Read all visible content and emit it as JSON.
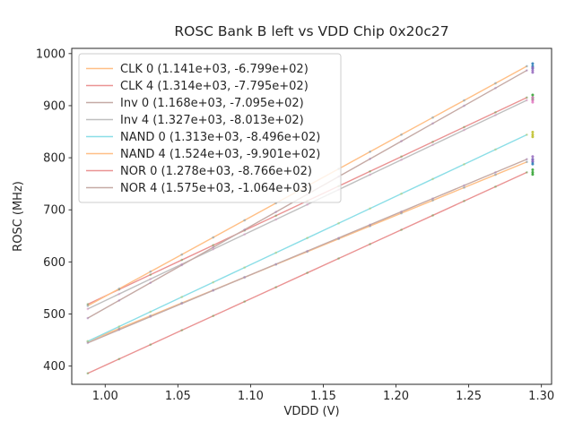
{
  "title": "ROSC Bank B left vs VDD Chip 0x20c27",
  "chart_data": {
    "type": "line",
    "title": "ROSC Bank B left vs VDD Chip 0x20c27",
    "xlabel": "VDDD (V)",
    "ylabel": "ROSC (MHz)",
    "xlim": [
      0.977,
      1.307
    ],
    "ylim": [
      365,
      1010
    ],
    "x_ticks": [
      1.0,
      1.05,
      1.1,
      1.15,
      1.2,
      1.25,
      1.3
    ],
    "x_tick_labels": [
      "1.00",
      "1.05",
      "1.10",
      "1.15",
      "1.20",
      "1.25",
      "1.30"
    ],
    "y_ticks": [
      400,
      500,
      600,
      700,
      800,
      900,
      1000
    ],
    "y_tick_labels": [
      "400",
      "500",
      "600",
      "700",
      "800",
      "900",
      "1000"
    ],
    "grid": false,
    "legend_position": "upper left",
    "x_start": 0.988,
    "x_end": 1.29,
    "n_points": 15,
    "fit_note": "each series is a linear fit y = slope*x + intercept, legend shows (slope, intercept)",
    "series": [
      {
        "name": "CLK 0",
        "label": "CLK 0 (1.141e+03, -6.799e+02)",
        "slope": 1141,
        "intercept": -679.9,
        "line_color": "#ffbf86",
        "point_color": "#1f77b4"
      },
      {
        "name": "CLK 4",
        "label": "CLK 4 (1.314e+03, -7.795e+02)",
        "slope": 1314,
        "intercept": -779.5,
        "line_color": "#ea9393",
        "point_color": "#2ca02c"
      },
      {
        "name": "Inv 0",
        "label": "Inv 0 (1.168e+03, -7.095e+02)",
        "slope": 1168,
        "intercept": -709.5,
        "line_color": "#c5aaa5",
        "point_color": "#9467bd"
      },
      {
        "name": "Inv 4",
        "label": "Inv 4 (1.327e+03, -8.013e+02)",
        "slope": 1327,
        "intercept": -801.3,
        "line_color": "#bfbfbf",
        "point_color": "#e377c2"
      },
      {
        "name": "NAND 0",
        "label": "NAND 0 (1.313e+03, -8.496e+02)",
        "slope": 1313,
        "intercept": -849.6,
        "line_color": "#8bdee7",
        "point_color": "#bcbd22"
      },
      {
        "name": "NAND 4",
        "label": "NAND 4 (1.524e+03, -9.901e+02)",
        "slope": 1524,
        "intercept": -990.1,
        "line_color": "#ffbf86",
        "point_color": "#1f77b4"
      },
      {
        "name": "NOR 0",
        "label": "NOR 0 (1.278e+03, -8.766e+02)",
        "slope": 1278,
        "intercept": -876.6,
        "line_color": "#ea9393",
        "point_color": "#2ca02c"
      },
      {
        "name": "NOR 4",
        "label": "NOR 4 (1.575e+03, -1.064e+03)",
        "slope": 1575,
        "intercept": -1064.0,
        "line_color": "#c5aaa5",
        "point_color": "#9467bd"
      }
    ],
    "axis_color": "#262626",
    "legend_border_color": "#cccccc"
  }
}
